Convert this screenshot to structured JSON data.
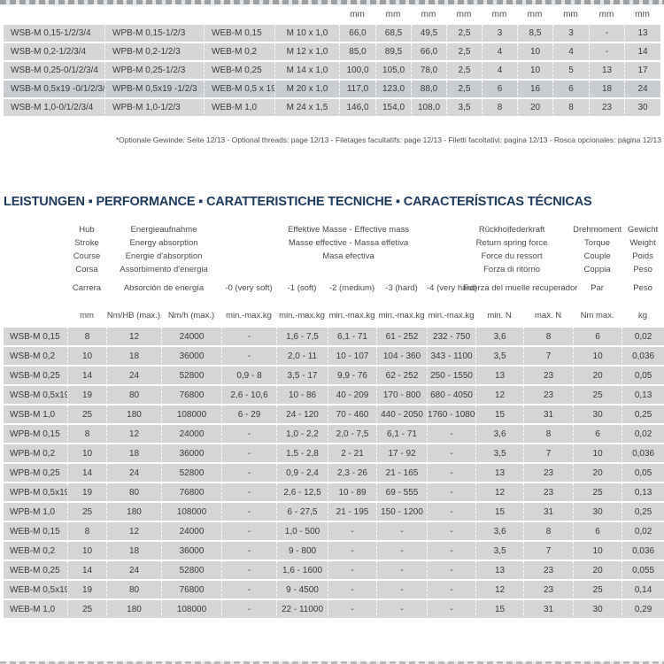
{
  "dimensions_table": {
    "unit_row": [
      "mm",
      "mm",
      "mm",
      "mm",
      "mm",
      "mm",
      "mm",
      "mm",
      "mm"
    ],
    "rows": [
      [
        "WSB-M 0,15-1/2/3/4",
        "WPB-M 0,15-1/2/3",
        "WEB-M 0,15",
        "M 10 x 1,0",
        "66,0",
        "68,5",
        "49,5",
        "2,5",
        "3",
        "8,5",
        "3",
        "-",
        "13"
      ],
      [
        "WSB-M 0,2-1/2/3/4",
        "WPB-M 0,2-1/2/3",
        "WEB-M 0,2",
        "M 12 x 1,0",
        "85,0",
        "89,5",
        "66,0",
        "2,5",
        "4",
        "10",
        "4",
        "-",
        "14"
      ],
      [
        "WSB-M 0,25-0/1/2/3/4",
        "WPB-M 0,25-1/2/3",
        "WEB-M 0,25",
        "M 14 x 1,0",
        "100,0",
        "105,0",
        "78,0",
        "2,5",
        "4",
        "10",
        "5",
        "13",
        "17"
      ],
      [
        "WSB-M 0,5x19 -0/1/2/3/4",
        "WPB-M 0,5x19 -1/2/3",
        "WEB-M 0,5 x 19",
        "M 20 x 1,0",
        "117,0",
        "123,0",
        "88,0",
        "2,5",
        "6",
        "16",
        "6",
        "18",
        "24"
      ],
      [
        "WSB-M 1,0-0/1/2/3/4",
        "WPB-M 1,0-1/2/3",
        "WEB-M 1,0",
        "M 24 x 1,5",
        "146,0",
        "154,0",
        "108,0",
        "3,5",
        "8",
        "20",
        "8",
        "23",
        "30"
      ]
    ]
  },
  "footnote": "*Optionale Gewinde: Seite 12/13 - Optional threads: page 12/13 - Filetages facultatifs: page 12/13 - Filetti facoltativi: pagina 12/13 - Rosca opcionales: página 12/13",
  "section_title": "LEISTUNGEN ▪ PERFORMANCE ▪ CARATTERISTICHE TECNICHE ▪ CARACTERÍSTICAS TÉCNICAS",
  "performance_table": {
    "header": {
      "stroke": {
        "lines": [
          "Hub",
          "Stroke",
          "Course",
          "Corsa"
        ],
        "last": "Carrera"
      },
      "energy": {
        "lines": [
          "Energieaufnahme",
          "Energy absorption",
          "Energie d'absorption",
          "Assorbimento d'energia"
        ],
        "last": "Absorción de energía"
      },
      "mass": {
        "lines": [
          "Effektive Masse - Effective mass",
          "Masse effective - Massa effetiva",
          "Masa efectiva"
        ],
        "grades": [
          "-0 (very soft)",
          "-1 (soft)",
          "-2 (medium)",
          "-3 (hard)",
          "-4 (very hard)"
        ]
      },
      "spring": {
        "lines": [
          "Rückholfederkraft",
          "Return spring force",
          "Force du ressort",
          "Forza di ritorno"
        ],
        "last": "Fuerza del muelle recuperador"
      },
      "torque": {
        "lines": [
          "Drehmoment",
          "Torque",
          "Couple",
          "Coppia"
        ],
        "last": "Par"
      },
      "weight": {
        "lines": [
          "Gewicht",
          "Weight",
          "Poids",
          "Peso"
        ],
        "last": "Peso"
      },
      "units": [
        "mm",
        "Nm/HB (max.)",
        "Nm/h (max.)",
        "min.-max.kg",
        "min.-max.kg",
        "min.-max.kg",
        "min.-max.kg",
        "min.-max.kg",
        "min. N",
        "max. N",
        "Nm max.",
        "kg"
      ]
    },
    "rows": [
      [
        "WSB-M 0,15",
        "8",
        "12",
        "24000",
        "-",
        "1,6 - 7,5",
        "6,1 - 71",
        "61 - 252",
        "232 - 750",
        "3,6",
        "8",
        "6",
        "0,02"
      ],
      [
        "WSB-M 0,2",
        "10",
        "18",
        "36000",
        "-",
        "2,0 - 11",
        "10 - 107",
        "104 - 360",
        "343 - 1100",
        "3,5",
        "7",
        "10",
        "0,036"
      ],
      [
        "WSB-M 0,25",
        "14",
        "24",
        "52800",
        "0,9 - 8",
        "3,5 - 17",
        "9,9 - 76",
        "62 - 252",
        "250 - 1550",
        "13",
        "23",
        "20",
        "0,05"
      ],
      [
        "WSB-M 0,5x19",
        "19",
        "80",
        "76800",
        "2,6 - 10,6",
        "10 - 86",
        "40 - 209",
        "170 - 800",
        "680 - 4050",
        "12",
        "23",
        "25",
        "0,13"
      ],
      [
        "WSB-M 1,0",
        "25",
        "180",
        "108000",
        "6 - 29",
        "24 - 120",
        "70 - 460",
        "440 - 2050",
        "1760 - 10800",
        "15",
        "31",
        "30",
        "0,25"
      ],
      [
        "WPB-M 0,15",
        "8",
        "12",
        "24000",
        "-",
        "1,0 - 2,2",
        "2,0 - 7,5",
        "6,1 - 71",
        "-",
        "3,6",
        "8",
        "6",
        "0,02"
      ],
      [
        "WPB-M 0,2",
        "10",
        "18",
        "36000",
        "-",
        "1,5 - 2,8",
        "2 - 21",
        "17 - 92",
        "-",
        "3,5",
        "7",
        "10",
        "0,036"
      ],
      [
        "WPB-M 0,25",
        "14",
        "24",
        "52800",
        "-",
        "0,9 - 2,4",
        "2,3 - 26",
        "21 - 165",
        "-",
        "13",
        "23",
        "20",
        "0,05"
      ],
      [
        "WPB-M 0,5x19",
        "19",
        "80",
        "76800",
        "-",
        "2,6 - 12,5",
        "10 - 89",
        "69 - 555",
        "-",
        "12",
        "23",
        "25",
        "0,13"
      ],
      [
        "WPB-M 1,0",
        "25",
        "180",
        "108000",
        "-",
        "6 - 27,5",
        "21 - 195",
        "150 - 1200",
        "-",
        "15",
        "31",
        "30",
        "0,25"
      ],
      [
        "WEB-M 0,15",
        "8",
        "12",
        "24000",
        "-",
        "1,0 - 500",
        "-",
        "-",
        "-",
        "3,6",
        "8",
        "6",
        "0,02"
      ],
      [
        "WEB-M 0,2",
        "10",
        "18",
        "36000",
        "-",
        "9 - 800",
        "-",
        "-",
        "-",
        "3,5",
        "7",
        "10",
        "0,036"
      ],
      [
        "WEB-M 0,25",
        "14",
        "24",
        "52800",
        "-",
        "1,6 - 1600",
        "-",
        "-",
        "-",
        "13",
        "23",
        "20",
        "0,055"
      ],
      [
        "WEB-M 0,5x19",
        "19",
        "80",
        "76800",
        "-",
        "9 - 4500",
        "-",
        "-",
        "-",
        "12",
        "23",
        "25",
        "0,14"
      ],
      [
        "WEB-M 1,0",
        "25",
        "180",
        "108000",
        "-",
        "22 - 11000",
        "-",
        "-",
        "-",
        "15",
        "31",
        "30",
        "0,29"
      ]
    ]
  }
}
